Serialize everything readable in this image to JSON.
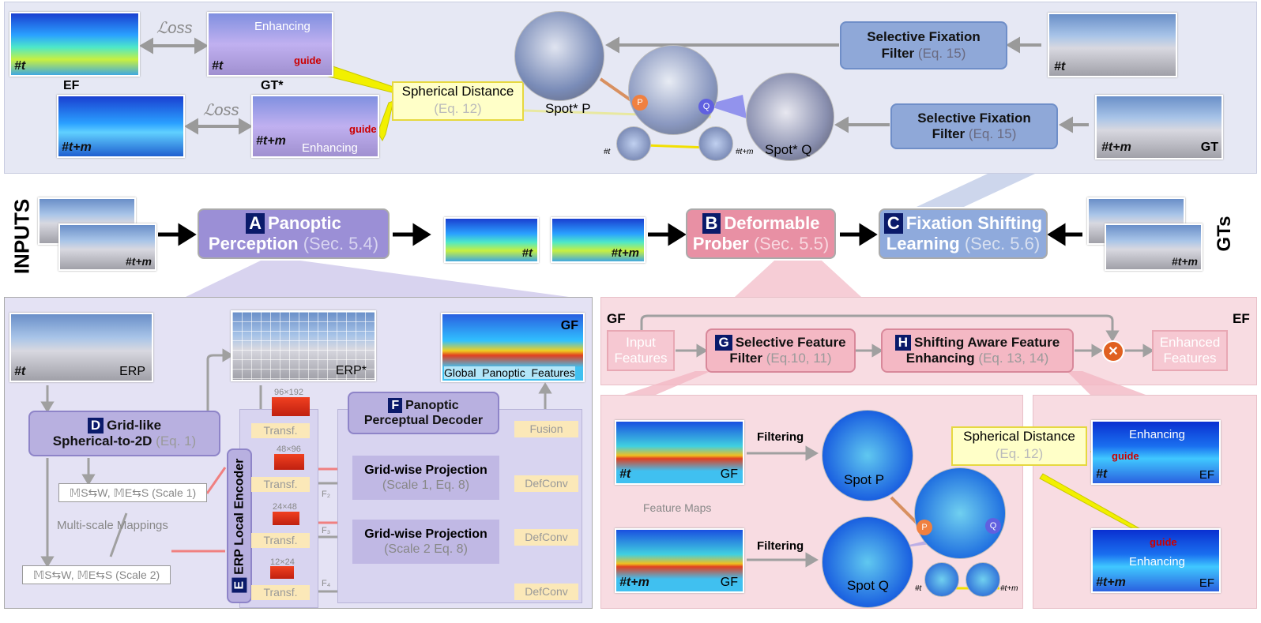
{
  "top": {
    "loss": "ℒoss",
    "enhancing": "Enhancing",
    "guide": "guide",
    "label_t": "#t",
    "label_tm": "#t+m",
    "ef": "EF",
    "gt_star": "GT*",
    "gt": "GT",
    "spherical_distance": "Spherical Distance",
    "eq12": "(Eq. 12)",
    "spot_p": "Spot* P",
    "spot_q": "Spot* Q",
    "sff_title_1": "Selective Fixation",
    "sff_title_2": "Filter",
    "eq15": "(Eq. 15)",
    "p": "P",
    "q": "Q"
  },
  "middle": {
    "inputs": "INPUTS",
    "gts": "GTs",
    "a_letter": "A",
    "a_title_1": "Panoptic",
    "a_title_2": "Perception",
    "a_sec": "(Sec. 5.4)",
    "b_letter": "B",
    "b_title_1": "Deformable",
    "b_title_2": "Prober",
    "b_sec": "(Sec. 5.5)",
    "c_letter": "C",
    "c_title_1": "Fixation Shifting",
    "c_title_2": "Learning",
    "c_sec": "(Sec. 5.6)",
    "t": "#t",
    "tm": "#t+m"
  },
  "left": {
    "erp": "ERP",
    "erp_star": "ERP*",
    "gf": "GF",
    "global_features": "Global  Panoptic  Features",
    "d_letter": "D",
    "d_title_1": "Grid-like",
    "d_title_2": "Spherical-to-2D",
    "d_eq": "(Eq. 1)",
    "e_letter": "E",
    "e_title": "ERP Local Encoder",
    "f_letter": "F",
    "f_title_1": "Panoptic",
    "f_title_2": "Perceptual Decoder",
    "scale1": "𝕄S⇆W, 𝕄E⇆S (Scale 1)",
    "scale2": "𝕄S⇆W, 𝕄E⇆S (Scale 2)",
    "multi_scale": "Multi-scale Mappings",
    "transf": "Transf.",
    "res1": "96×192",
    "res2": "48×96",
    "res3": "24×48",
    "res4": "12×24",
    "f2": "F₂",
    "f3": "F₃",
    "f4": "F₄",
    "gp1_title": "Grid-wise Projection",
    "gp1_sub": "(Scale 1, Eq. 8)",
    "gp2_title": "Grid-wise Projection",
    "gp2_sub": "(Scale 2 Eq. 8)",
    "defconv": "DefConv",
    "fusion": "Fusion",
    "t": "#t"
  },
  "right": {
    "gf": "GF",
    "ef": "EF",
    "input_features_1": "Input",
    "input_features_2": "Features",
    "g_letter": "G",
    "g_title_1": "Selective Feature",
    "g_title_2": "Filter",
    "g_eq": "(Eq.10, 11)",
    "h_letter": "H",
    "h_title_1": "Shifting Aware Feature",
    "h_title_2": "Enhancing",
    "h_eq": "(Eq. 13, 14)",
    "enhanced_1": "Enhanced",
    "enhanced_2": "Features",
    "filtering": "Filtering",
    "feature_maps": "Feature Maps",
    "spot_p": "Spot P",
    "spot_q": "Spot Q",
    "spherical_distance": "Spherical Distance",
    "eq12": "(Eq. 12)",
    "enhancing": "Enhancing",
    "guide": "guide",
    "t": "#t",
    "tm": "#t+m",
    "p": "P",
    "q": "Q"
  }
}
